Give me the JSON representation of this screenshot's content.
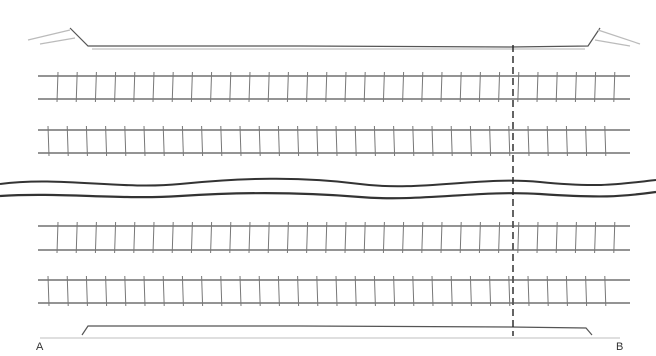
{
  "labels": {
    "left": "A",
    "right": "B"
  }
}
